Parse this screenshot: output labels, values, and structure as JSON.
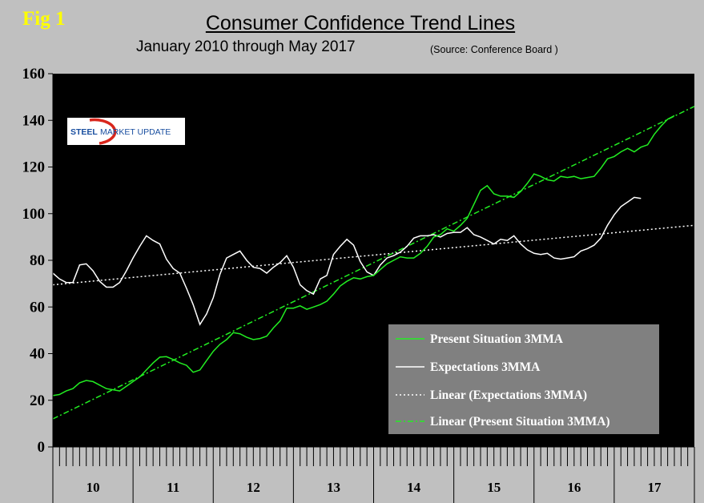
{
  "fig_label": "Fig 1",
  "chart_data": {
    "type": "line",
    "title": "Consumer Confidence Trend Lines",
    "subtitle": "January 2010 through May 2017",
    "source": "(Source: Conference Board )",
    "ylim": [
      0,
      160
    ],
    "yticks": [
      0,
      20,
      40,
      60,
      80,
      100,
      120,
      140,
      160
    ],
    "ytick_labels": [
      "0",
      "20",
      "40",
      "60",
      "80",
      "100",
      "120",
      "140",
      "160"
    ],
    "xlim": [
      0,
      96
    ],
    "x_groups": [
      "10",
      "11",
      "12",
      "13",
      "14",
      "15",
      "16",
      "17"
    ],
    "x_unit": "months since Jan 2010",
    "grid": false,
    "legend_position": "bottom-right",
    "colors": {
      "present": "#22ee22",
      "expectations": "#ffffff",
      "plot_bg": "#000000",
      "frame_bg": "#c0c0c0",
      "legend_bg": "#808080",
      "fig_label": "#ffff00",
      "logo_red": "#d9261c",
      "logo_blue": "#1a4fa0"
    },
    "series": [
      {
        "name": "Present Situation 3MMA",
        "style": "solid",
        "x_start": 0,
        "values": [
          22,
          22.5,
          24,
          25,
          27.5,
          28.5,
          28,
          26.5,
          25,
          24.5,
          24,
          26,
          28,
          30,
          33,
          36,
          38.5,
          38.7,
          37.5,
          36,
          35,
          32,
          33,
          37,
          41,
          44,
          46,
          49,
          48.5,
          47,
          46,
          46.5,
          47.5,
          51,
          54,
          59.5,
          59.5,
          60.5,
          59,
          60,
          61,
          62.5,
          65.5,
          69,
          71,
          72.5,
          72,
          73,
          73.5,
          76,
          78.5,
          80,
          81.5,
          81,
          81,
          83,
          86,
          90,
          91,
          93.5,
          92.5,
          95,
          98,
          104,
          110,
          112,
          108.5,
          107.5,
          107.5,
          107,
          109.5,
          113,
          117,
          116,
          114.5,
          114,
          116,
          115.5,
          116,
          115,
          115.5,
          116,
          119.5,
          123.5,
          124.5,
          126.5,
          128,
          126.5,
          128.5,
          129.5,
          134,
          137.5,
          140.5,
          142
        ]
      },
      {
        "name": "Expectations 3MMA",
        "style": "solid",
        "x_start": 0,
        "values": [
          74.5,
          72,
          70.5,
          70.5,
          78,
          78.5,
          75.5,
          71,
          68.5,
          68.5,
          70.5,
          75.5,
          81,
          86,
          90.5,
          88.5,
          87,
          80.5,
          76.5,
          74.5,
          68,
          61,
          52.5,
          57,
          64,
          74,
          81,
          82.5,
          84,
          80,
          77,
          76.5,
          74.5,
          77,
          79,
          82,
          77,
          69.5,
          67,
          65.5,
          72,
          73.5,
          82.5,
          86,
          89,
          86.5,
          79.5,
          75,
          73.5,
          78,
          81,
          82,
          83.5,
          86,
          89.5,
          90.5,
          90.5,
          91,
          90,
          91.5,
          92,
          92,
          94,
          91,
          90,
          88.5,
          87,
          89,
          88.5,
          90.5,
          87,
          84.5,
          83,
          82.5,
          83,
          81,
          80.5,
          81,
          81.5,
          84,
          85,
          86.5,
          89.5,
          95,
          99.5,
          103,
          105,
          107,
          106.5
        ]
      },
      {
        "name": "Linear (Expectations 3MMA)",
        "style": "dotted",
        "x": [
          0,
          96
        ],
        "values": [
          69.5,
          95
        ]
      },
      {
        "name": "Linear (Present Situation 3MMA)",
        "style": "dash-dot",
        "x": [
          0,
          96
        ],
        "values": [
          12,
          146
        ]
      }
    ]
  },
  "logo": {
    "line1": "STEEL",
    "line2": "MARKET UPDATE"
  }
}
